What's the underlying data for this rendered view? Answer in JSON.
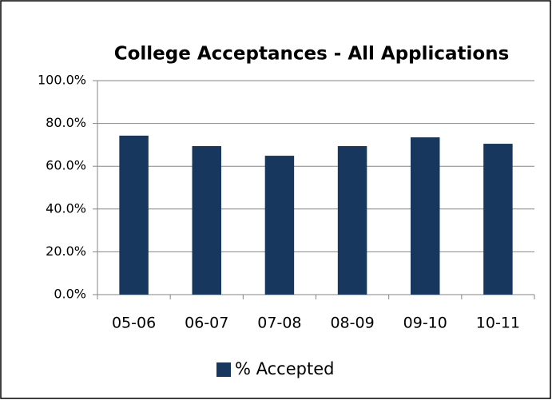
{
  "chart_data": {
    "type": "bar",
    "title": "College Acceptances - All Applications",
    "categories": [
      "05-06",
      "06-07",
      "07-08",
      "08-09",
      "09-10",
      "10-11"
    ],
    "series": [
      {
        "name": "% Accepted",
        "color": "#17375e",
        "values": [
          74.3,
          69.4,
          64.9,
          69.4,
          73.5,
          70.5
        ]
      }
    ],
    "ylim": [
      0,
      100
    ],
    "yticks": [
      {
        "value": 0,
        "label": "0.0%"
      },
      {
        "value": 20,
        "label": "20.0%"
      },
      {
        "value": 40,
        "label": "40.0%"
      },
      {
        "value": 60,
        "label": "60.0%"
      },
      {
        "value": 80,
        "label": "80.0%"
      },
      {
        "value": 100,
        "label": "100.0%"
      }
    ],
    "grid": true,
    "legend": "bottom"
  }
}
